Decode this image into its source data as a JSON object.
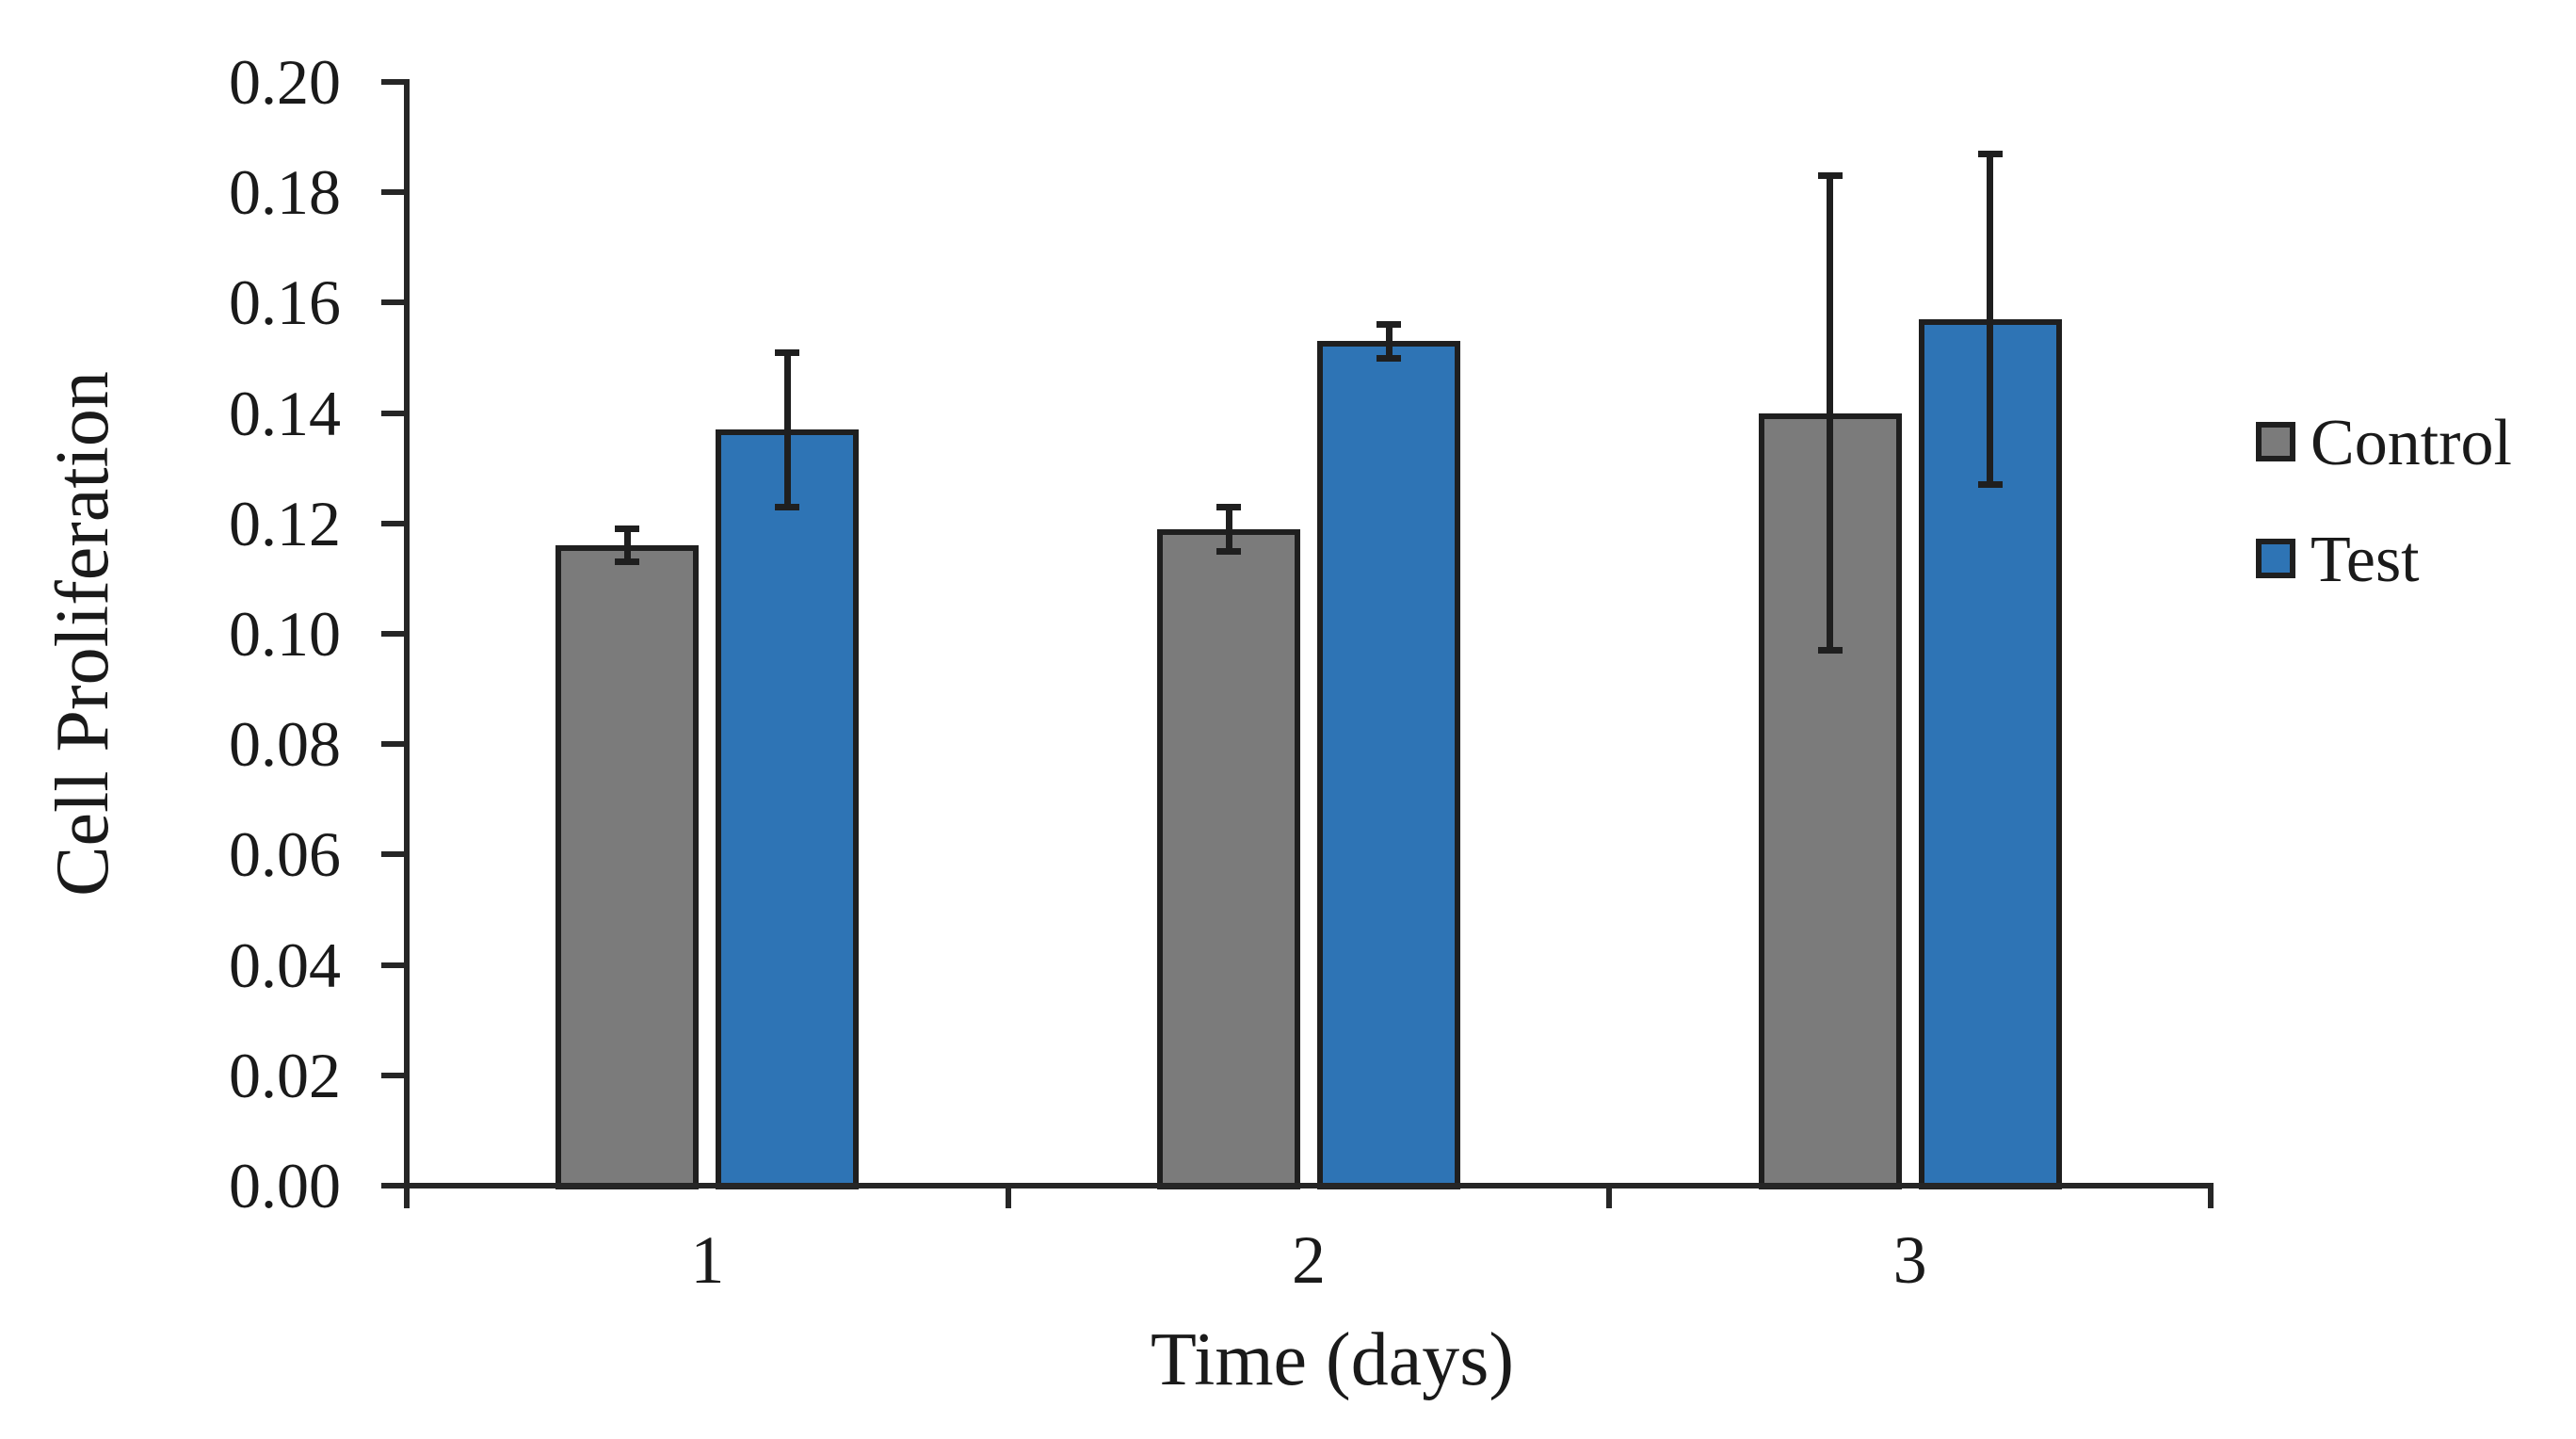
{
  "chart_data": {
    "type": "bar",
    "title": "",
    "xlabel": "Time (days)",
    "ylabel": "Cell Proliferation",
    "categories": [
      "1",
      "2",
      "3"
    ],
    "series": [
      {
        "name": "Control",
        "color": "#7B7B7B",
        "values": [
          0.116,
          0.119,
          0.14
        ],
        "errors": [
          0.003,
          0.004,
          0.043
        ]
      },
      {
        "name": "Test",
        "color": "#2E74B5",
        "values": [
          0.137,
          0.153,
          0.157
        ],
        "errors": [
          0.014,
          0.003,
          0.03
        ]
      }
    ],
    "ylim": [
      0.0,
      0.2
    ],
    "y_ticks": [
      0.0,
      0.02,
      0.04,
      0.06,
      0.08,
      0.1,
      0.12,
      0.14,
      0.16,
      0.18,
      0.2
    ],
    "y_tick_labels": [
      "0.00",
      "0.02",
      "0.04",
      "0.06",
      "0.08",
      "0.10",
      "0.12",
      "0.14",
      "0.16",
      "0.18",
      "0.20"
    ],
    "grid": false,
    "legend_position": "right",
    "background": "#FFFFFF",
    "axis_color": "#262626",
    "bar_outline_color": "#1F1F1F",
    "error_bar_color": "#1F1F1F"
  }
}
